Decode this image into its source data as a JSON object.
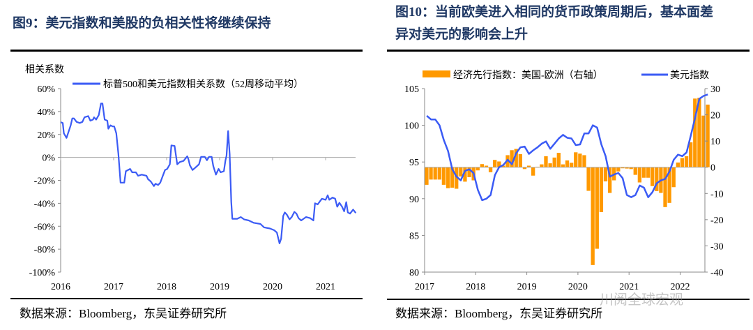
{
  "left": {
    "title": "图9：美元指数和美股的负相关性将继续保持",
    "source": "数据来源：Bloomberg，东吴证券研究所"
  },
  "right": {
    "title_line1": "图10：当前欧美进入相同的货币政策周期后，基本面差",
    "title_line2": "异对美元的影响会上升",
    "source": "数据来源：Bloomberg，东吴证券研究所",
    "watermark": "川阅全球宏观"
  },
  "chart_data": [
    {
      "type": "line",
      "ylabel": "相关系数",
      "ylim": [
        -100,
        60
      ],
      "yticks": [
        "60%",
        "40%",
        "20%",
        "0%",
        "-20%",
        "-40%",
        "-60%",
        "-80%",
        "-100%"
      ],
      "xticks": [
        "2016",
        "2017",
        "2018",
        "2019",
        "2020",
        "2021"
      ],
      "legend_placement": "top",
      "series": [
        {
          "name": "标普500和美元指数相关系数（52周移动平均）",
          "color": "#3b5bf5",
          "points": [
            [
              2016.0,
              30.7
            ],
            [
              2016.04,
              30
            ],
            [
              2016.06,
              21
            ],
            [
              2016.11,
              17
            ],
            [
              2016.19,
              28
            ],
            [
              2016.22,
              34
            ],
            [
              2016.25,
              34
            ],
            [
              2016.3,
              31
            ],
            [
              2016.36,
              30
            ],
            [
              2016.41,
              31
            ],
            [
              2016.45,
              35
            ],
            [
              2016.52,
              36
            ],
            [
              2016.56,
              32
            ],
            [
              2016.61,
              33
            ],
            [
              2016.63,
              35
            ],
            [
              2016.67,
              33
            ],
            [
              2016.72,
              37
            ],
            [
              2016.76,
              47
            ],
            [
              2016.79,
              47
            ],
            [
              2016.83,
              33
            ],
            [
              2016.88,
              32
            ],
            [
              2016.9,
              25
            ],
            [
              2016.94,
              28
            ],
            [
              2016.98,
              27
            ],
            [
              2017.01,
              27
            ],
            [
              2017.05,
              21
            ],
            [
              2017.09,
              3
            ],
            [
              2017.13,
              -22
            ],
            [
              2017.2,
              -22
            ],
            [
              2017.23,
              -12
            ],
            [
              2017.31,
              -10
            ],
            [
              2017.35,
              -13
            ],
            [
              2017.42,
              -13
            ],
            [
              2017.46,
              -16
            ],
            [
              2017.53,
              -15
            ],
            [
              2017.62,
              -16
            ],
            [
              2017.65,
              -19
            ],
            [
              2017.7,
              -21
            ],
            [
              2017.76,
              -25
            ],
            [
              2017.79,
              -23
            ],
            [
              2017.84,
              -24
            ],
            [
              2017.88,
              -22
            ],
            [
              2017.92,
              -17
            ],
            [
              2017.97,
              -11
            ],
            [
              2018.01,
              -10
            ],
            [
              2018.06,
              -6
            ],
            [
              2018.09,
              10.5
            ],
            [
              2018.15,
              10
            ],
            [
              2018.2,
              -6
            ],
            [
              2018.25,
              -4
            ],
            [
              2018.32,
              -3
            ],
            [
              2018.39,
              1
            ],
            [
              2018.41,
              -1.5
            ],
            [
              2018.44,
              -7
            ],
            [
              2018.49,
              -11
            ],
            [
              2018.54,
              -9
            ],
            [
              2018.61,
              -6
            ],
            [
              2018.65,
              0.5
            ],
            [
              2018.72,
              0.5
            ],
            [
              2018.76,
              -2.5
            ],
            [
              2018.8,
              0.5
            ],
            [
              2018.85,
              0.5
            ],
            [
              2018.88,
              -7.5
            ],
            [
              2018.93,
              -15
            ],
            [
              2018.98,
              -10
            ],
            [
              2019.02,
              -13
            ],
            [
              2019.08,
              -12
            ],
            [
              2019.11,
              -2.5
            ],
            [
              2019.13,
              1.5
            ],
            [
              2019.16,
              23
            ],
            [
              2019.19,
              3
            ],
            [
              2019.22,
              -39
            ],
            [
              2019.24,
              -53.5
            ],
            [
              2019.33,
              -53.5
            ],
            [
              2019.4,
              -52
            ],
            [
              2019.46,
              -54
            ],
            [
              2019.55,
              -55
            ],
            [
              2019.64,
              -57
            ],
            [
              2019.77,
              -58
            ],
            [
              2019.84,
              -61
            ],
            [
              2019.95,
              -62
            ],
            [
              2020.03,
              -63.5
            ],
            [
              2020.08,
              -65.5
            ],
            [
              2020.13,
              -75
            ],
            [
              2020.16,
              -71
            ],
            [
              2020.2,
              -51
            ],
            [
              2020.23,
              -48
            ],
            [
              2020.27,
              -50
            ],
            [
              2020.32,
              -54
            ],
            [
              2020.36,
              -52
            ],
            [
              2020.41,
              -47.5
            ],
            [
              2020.45,
              -49
            ],
            [
              2020.49,
              -53
            ],
            [
              2020.54,
              -55
            ],
            [
              2020.63,
              -52
            ],
            [
              2020.71,
              -53
            ],
            [
              2020.77,
              -55
            ],
            [
              2020.8,
              -40
            ],
            [
              2020.85,
              -41
            ],
            [
              2020.93,
              -36
            ],
            [
              2021.0,
              -37
            ],
            [
              2021.04,
              -33
            ],
            [
              2021.07,
              -37
            ],
            [
              2021.13,
              -35
            ],
            [
              2021.18,
              -36
            ],
            [
              2021.22,
              -43
            ],
            [
              2021.26,
              -39.5
            ],
            [
              2021.31,
              -43
            ],
            [
              2021.35,
              -47
            ],
            [
              2021.39,
              -39
            ],
            [
              2021.42,
              -48
            ],
            [
              2021.46,
              -49
            ],
            [
              2021.52,
              -45.5
            ],
            [
              2021.57,
              -48.5
            ]
          ]
        }
      ]
    },
    {
      "type": "bar+line",
      "xticks": [
        "2017",
        "2018",
        "2019",
        "2020",
        "2021",
        "2022"
      ],
      "x_start": "2017-01",
      "frequency": "monthly",
      "y_left": {
        "ylim": [
          80,
          105
        ],
        "ticks": [
          "105",
          "100",
          "95",
          "90",
          "85",
          "80"
        ]
      },
      "y_right": {
        "ylim": [
          -40,
          30
        ],
        "ticks": [
          "30",
          "20",
          "10",
          "0",
          "-10",
          "-20",
          "-30",
          "-40"
        ]
      },
      "legend_placement": "top",
      "series": [
        {
          "name": "经济先行指数：美国-欧洲（右轴）",
          "kind": "bar",
          "axis": "right",
          "color": "#ff9900",
          "values": [
            -6.7,
            -4.7,
            -4.7,
            -4.7,
            -6.7,
            -8,
            -7.8,
            -8.2,
            -3.5,
            -5.5,
            -3.8,
            -5,
            -1.2,
            1.2,
            0.6,
            -1.9,
            2.8,
            2.2,
            0.6,
            4.6,
            6.5,
            7,
            5,
            -0.7,
            0.6,
            -3.2,
            0.2,
            1.1,
            4.2,
            1.5,
            3.7,
            5.5,
            1.1,
            2.6,
            1.7,
            5.7,
            5.2,
            4.6,
            -9,
            -37.3,
            -31.1,
            -17.1,
            -5.4,
            -9.8,
            -5,
            -1.6,
            -0.4,
            -0.5,
            -0.7,
            -2.9,
            -5.8,
            -4,
            -4,
            -7.2,
            -9.1,
            -9.8,
            -15.2,
            -13.6,
            -7.6,
            1.8,
            3.5,
            4.2,
            9.5,
            26.2,
            26.5,
            19.7,
            23.9
          ]
        },
        {
          "name": "美元指数",
          "kind": "line",
          "axis": "left",
          "color": "#3b5bf5",
          "values": [
            101.3,
            100.8,
            100.8,
            100,
            98,
            96.5,
            94,
            93,
            92.5,
            93.8,
            94,
            93.5,
            91.2,
            89.8,
            90,
            90.5,
            93.2,
            94.3,
            94.6,
            95.3,
            94.7,
            96.2,
            97,
            97.1,
            96.1,
            96.6,
            97,
            97.5,
            97.8,
            96.8,
            97.5,
            98.2,
            98.7,
            98.3,
            98.2,
            97.3,
            97.4,
            98.9,
            98.9,
            100,
            99.7,
            97.4,
            95.8,
            93,
            93.3,
            93.5,
            92.8,
            90.5,
            90.2,
            90.5,
            91.8,
            91.5,
            90.2,
            90.9,
            92.1,
            92.5,
            92.7,
            93.7,
            95.3,
            96,
            95.8,
            96.3,
            98.6,
            101,
            103.6,
            104,
            104.2
          ]
        }
      ]
    }
  ]
}
